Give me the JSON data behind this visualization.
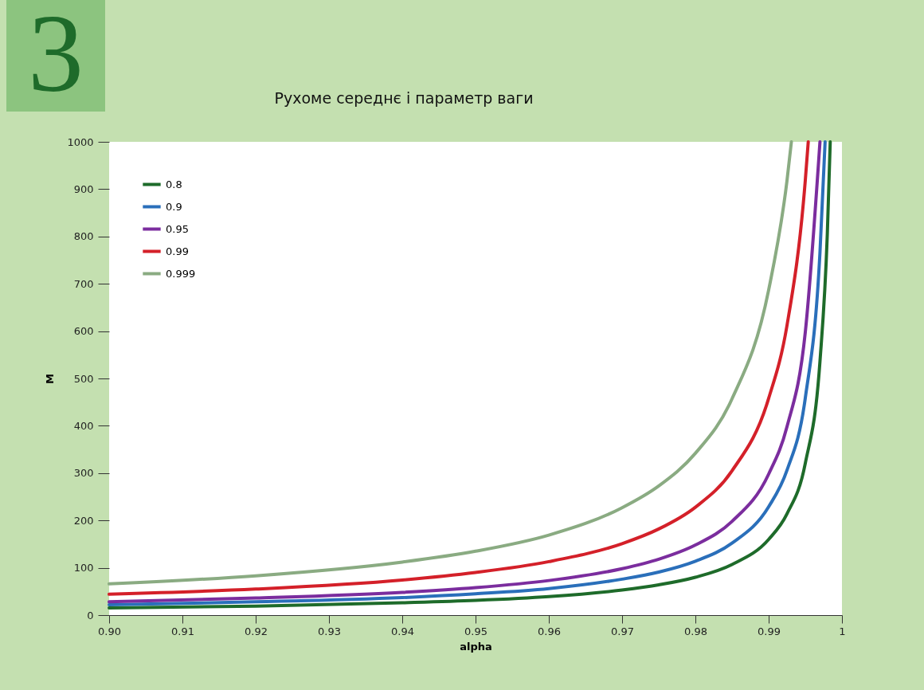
{
  "chart_data": {
    "type": "line",
    "title": "Рухоме середнє і параметр ваги",
    "xlabel": "alpha",
    "ylabel": "M",
    "annotations": [
      "3"
    ],
    "xlim": [
      0.9,
      1.0
    ],
    "ylim": [
      0,
      1000
    ],
    "xticks": [
      {
        "value": 0.9,
        "label": "0.90"
      },
      0.91,
      0.92,
      0.93,
      0.94,
      0.95,
      0.96,
      0.97,
      0.98,
      0.99,
      1
    ],
    "yticks": [
      0,
      100,
      200,
      300,
      400,
      500,
      600,
      700,
      800,
      900,
      1000
    ],
    "grid": false,
    "legend": "top left",
    "marker": "none",
    "line_style": "solid",
    "series": [
      {
        "name": "0.8",
        "color": "#1e6b2a",
        "x": [
          0.9,
          0.92,
          0.94,
          0.95,
          0.96,
          0.97,
          0.975,
          0.98,
          0.985,
          0.99,
          0.9925,
          0.995,
          0.997,
          0.998,
          0.9984
        ],
        "values": [
          15,
          19,
          26,
          31,
          39,
          53,
          64,
          80,
          107,
          160,
          214,
          321,
          536,
          804,
          1000
        ]
      },
      {
        "name": "0.9",
        "color": "#2a6fba",
        "x": [
          0.9,
          0.92,
          0.94,
          0.95,
          0.96,
          0.97,
          0.975,
          0.98,
          0.985,
          0.99,
          0.9925,
          0.995,
          0.997,
          0.9977
        ],
        "values": [
          22,
          28,
          37,
          45,
          56,
          76,
          91,
          114,
          152,
          229,
          306,
          459,
          766,
          1000
        ]
      },
      {
        "name": "0.95",
        "color": "#7b2d9e",
        "x": [
          0.9,
          0.92,
          0.94,
          0.95,
          0.96,
          0.97,
          0.975,
          0.98,
          0.985,
          0.99,
          0.9925,
          0.995,
          0.997
        ],
        "values": [
          28,
          36,
          48,
          58,
          73,
          98,
          118,
          148,
          198,
          298,
          398,
          598,
          1000
        ]
      },
      {
        "name": "0.99",
        "color": "#d42029",
        "x": [
          0.9,
          0.92,
          0.94,
          0.95,
          0.96,
          0.97,
          0.975,
          0.98,
          0.985,
          0.99,
          0.9925,
          0.995,
          0.9954
        ],
        "values": [
          44,
          55,
          74,
          90,
          113,
          151,
          182,
          228,
          305,
          458,
          612,
          919,
          1000
        ]
      },
      {
        "name": "0.999",
        "color": "#8aab82",
        "x": [
          0.9,
          0.92,
          0.94,
          0.95,
          0.96,
          0.97,
          0.975,
          0.98,
          0.985,
          0.99,
          0.9925,
          0.9931
        ],
        "values": [
          66,
          83,
          112,
          135,
          169,
          227,
          273,
          342,
          457,
          687,
          918,
          1000
        ]
      }
    ]
  }
}
